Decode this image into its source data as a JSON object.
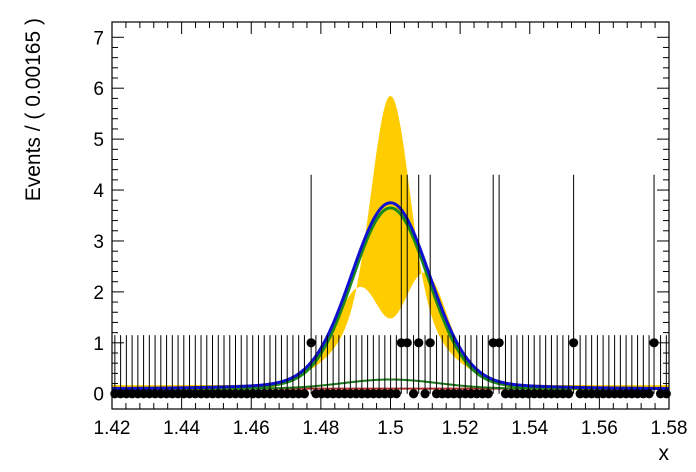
{
  "chart_data": {
    "type": "scatter",
    "title": "",
    "xlabel": "x",
    "ylabel": "Events / ( 0.00165 )",
    "xlim": [
      1.42,
      1.58
    ],
    "ylim": [
      -0.3,
      7.3
    ],
    "xticks": [
      "1.42",
      "1.44",
      "1.46",
      "1.48",
      "1.5",
      "1.52",
      "1.54",
      "1.56",
      "1.58"
    ],
    "yticks": [
      "0",
      "1",
      "2",
      "3",
      "4",
      "5",
      "6",
      "7"
    ],
    "bin_width": 0.00165,
    "error_bar_upper_zero": 1.15,
    "data_points": {
      "x_nonzero": [
        1.4772,
        1.5031,
        1.5048,
        1.5081,
        1.5114,
        1.5295,
        1.5312,
        1.5526,
        1.5757
      ],
      "y_nonzero": [
        1,
        1,
        1,
        1,
        1,
        1,
        1,
        1,
        1
      ],
      "err_up_nonzero": 3.3,
      "err_low_nonzero": 1,
      "y_other_bins": 0,
      "color": "#000000"
    },
    "series": [
      {
        "name": "",
        "style": "band",
        "color": "#ffcc00",
        "peak_upper": 5.85,
        "peak_lower": 1.45
      },
      {
        "name": "",
        "style": "line",
        "color": "#1010d0",
        "peak": 3.63
      },
      {
        "name": "",
        "style": "line",
        "color": "#1a8a1a",
        "peak": 3.57
      },
      {
        "name": "",
        "style": "line",
        "color": "#1a7a1a",
        "peak": 0.28
      },
      {
        "name": "",
        "style": "line",
        "color": "#b03030",
        "level": 0.1
      }
    ]
  }
}
